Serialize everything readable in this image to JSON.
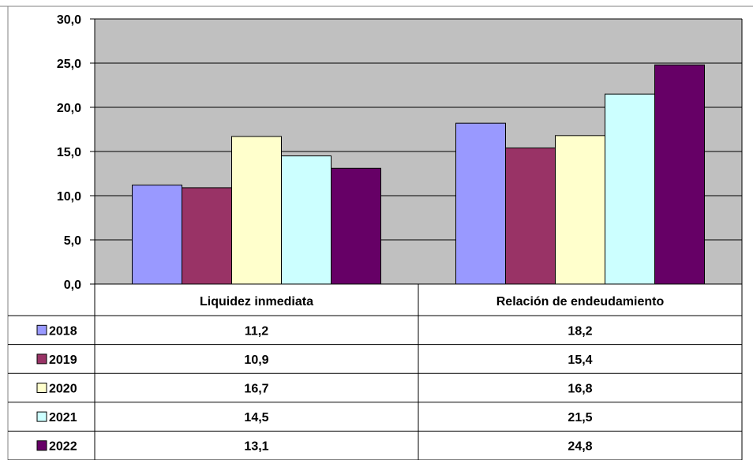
{
  "chart_data": {
    "type": "bar",
    "categories": [
      "Liquidez inmediata",
      "Relación de endeudamiento"
    ],
    "series": [
      {
        "name": "2018",
        "color": "#9999ff",
        "values": [
          11.2,
          18.2
        ],
        "labels": [
          "11,2",
          "18,2"
        ]
      },
      {
        "name": "2019",
        "color": "#993366",
        "values": [
          10.9,
          15.4
        ],
        "labels": [
          "10,9",
          "15,4"
        ]
      },
      {
        "name": "2020",
        "color": "#ffffcc",
        "values": [
          16.7,
          16.8
        ],
        "labels": [
          "16,7",
          "16,8"
        ]
      },
      {
        "name": "2021",
        "color": "#ccffff",
        "values": [
          14.5,
          21.5
        ],
        "labels": [
          "14,5",
          "21,5"
        ]
      },
      {
        "name": "2022",
        "color": "#660066",
        "values": [
          13.1,
          24.8
        ],
        "labels": [
          "13,1",
          "24,8"
        ]
      }
    ],
    "yticks": [
      "0,0",
      "5,0",
      "10,0",
      "15,0",
      "20,0",
      "25,0",
      "30,0"
    ],
    "ylim": [
      0,
      30
    ],
    "grid": true,
    "legend": "data-table",
    "plot_background": "#c0c0c0"
  }
}
